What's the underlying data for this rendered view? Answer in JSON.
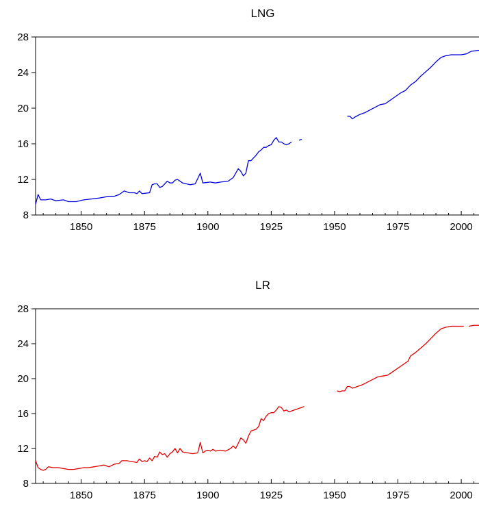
{
  "chart_data": [
    {
      "type": "line",
      "title": "LNG",
      "xlabel": "",
      "ylabel": "",
      "xlim": [
        1832,
        2007
      ],
      "ylim": [
        8,
        28
      ],
      "xticks": [
        "1850",
        "1875",
        "1900",
        "1925",
        "1950",
        "1975",
        "2000"
      ],
      "yticks": [
        "8",
        "12",
        "16",
        "20",
        "24",
        "28"
      ],
      "grid": false,
      "color": "#0000dd",
      "series": [
        {
          "segments": [
            [
              [
                1832,
                9.2
              ],
              [
                1833,
                10.3
              ],
              [
                1834,
                9.7
              ],
              [
                1836,
                9.7
              ],
              [
                1838,
                9.8
              ],
              [
                1840,
                9.6
              ],
              [
                1843,
                9.7
              ],
              [
                1845,
                9.5
              ],
              [
                1848,
                9.5
              ],
              [
                1851,
                9.7
              ],
              [
                1854,
                9.8
              ],
              [
                1857,
                9.9
              ],
              [
                1859,
                10.0
              ],
              [
                1861,
                10.1
              ],
              [
                1863,
                10.1
              ],
              [
                1865,
                10.3
              ],
              [
                1867,
                10.7
              ],
              [
                1869,
                10.5
              ],
              [
                1871,
                10.5
              ],
              [
                1872,
                10.4
              ],
              [
                1873,
                10.7
              ],
              [
                1874,
                10.4
              ],
              [
                1877,
                10.5
              ],
              [
                1878,
                11.4
              ],
              [
                1879,
                11.5
              ],
              [
                1880,
                11.5
              ],
              [
                1881,
                11.1
              ],
              [
                1882,
                11.2
              ],
              [
                1883,
                11.5
              ],
              [
                1884,
                11.8
              ],
              [
                1885,
                11.6
              ],
              [
                1886,
                11.6
              ],
              [
                1887,
                11.9
              ],
              [
                1888,
                12.0
              ],
              [
                1890,
                11.6
              ],
              [
                1893,
                11.4
              ],
              [
                1895,
                11.5
              ],
              [
                1897,
                12.7
              ],
              [
                1898,
                11.6
              ],
              [
                1901,
                11.7
              ],
              [
                1903,
                11.6
              ],
              [
                1905,
                11.7
              ],
              [
                1908,
                11.8
              ],
              [
                1910,
                12.2
              ],
              [
                1911,
                12.7
              ],
              [
                1912,
                13.2
              ],
              [
                1913,
                12.9
              ],
              [
                1914,
                12.4
              ],
              [
                1915,
                12.7
              ],
              [
                1916,
                14.1
              ],
              [
                1917,
                14.1
              ],
              [
                1918,
                14.4
              ],
              [
                1919,
                14.7
              ],
              [
                1920,
                15.1
              ],
              [
                1921,
                15.3
              ],
              [
                1922,
                15.6
              ],
              [
                1923,
                15.6
              ],
              [
                1924,
                15.8
              ],
              [
                1925,
                15.9
              ],
              [
                1926,
                16.4
              ],
              [
                1927,
                16.7
              ],
              [
                1928,
                16.2
              ],
              [
                1929,
                16.2
              ],
              [
                1930,
                16.0
              ],
              [
                1931,
                15.9
              ],
              [
                1932,
                16.0
              ],
              [
                1933,
                16.2
              ]
            ],
            [
              [
                1936,
                16.4
              ],
              [
                1937,
                16.5
              ]
            ],
            [
              [
                1955,
                19.1
              ],
              [
                1956,
                19.1
              ],
              [
                1957,
                18.8
              ],
              [
                1958,
                19.0
              ],
              [
                1960,
                19.3
              ],
              [
                1962,
                19.5
              ],
              [
                1964,
                19.8
              ],
              [
                1966,
                20.1
              ],
              [
                1968,
                20.4
              ],
              [
                1970,
                20.5
              ],
              [
                1972,
                20.9
              ],
              [
                1974,
                21.3
              ],
              [
                1976,
                21.7
              ],
              [
                1978,
                22.0
              ],
              [
                1980,
                22.6
              ],
              [
                1982,
                23.0
              ],
              [
                1984,
                23.6
              ],
              [
                1986,
                24.1
              ],
              [
                1988,
                24.6
              ],
              [
                1990,
                25.2
              ],
              [
                1992,
                25.7
              ],
              [
                1994,
                25.9
              ],
              [
                1996,
                26.0
              ],
              [
                1998,
                26.0
              ],
              [
                2000,
                26.0
              ],
              [
                2002,
                26.1
              ],
              [
                2004,
                26.4
              ],
              [
                2007,
                26.5
              ]
            ]
          ]
        }
      ]
    },
    {
      "type": "line",
      "title": "LR",
      "xlabel": "",
      "ylabel": "",
      "xlim": [
        1832,
        2007
      ],
      "ylim": [
        8,
        28
      ],
      "xticks": [
        "1850",
        "1875",
        "1900",
        "1925",
        "1950",
        "1975",
        "2000"
      ],
      "yticks": [
        "8",
        "12",
        "16",
        "20",
        "24",
        "28"
      ],
      "grid": false,
      "color": "#e00000",
      "series": [
        {
          "segments": [
            [
              [
                1832,
                10.6
              ],
              [
                1833,
                9.8
              ],
              [
                1834,
                9.6
              ],
              [
                1835,
                9.5
              ],
              [
                1836,
                9.6
              ],
              [
                1837,
                9.9
              ],
              [
                1839,
                9.8
              ],
              [
                1841,
                9.8
              ],
              [
                1843,
                9.7
              ],
              [
                1845,
                9.6
              ],
              [
                1847,
                9.6
              ],
              [
                1849,
                9.7
              ],
              [
                1851,
                9.8
              ],
              [
                1853,
                9.8
              ],
              [
                1855,
                9.9
              ],
              [
                1857,
                10.0
              ],
              [
                1859,
                10.1
              ],
              [
                1861,
                9.9
              ],
              [
                1863,
                10.2
              ],
              [
                1865,
                10.3
              ],
              [
                1866,
                10.6
              ],
              [
                1868,
                10.6
              ],
              [
                1870,
                10.5
              ],
              [
                1872,
                10.4
              ],
              [
                1873,
                10.8
              ],
              [
                1874,
                10.5
              ],
              [
                1875,
                10.6
              ],
              [
                1876,
                10.5
              ],
              [
                1877,
                10.9
              ],
              [
                1878,
                10.6
              ],
              [
                1879,
                11.1
              ],
              [
                1880,
                11.0
              ],
              [
                1881,
                11.6
              ],
              [
                1882,
                11.3
              ],
              [
                1883,
                11.4
              ],
              [
                1884,
                11.0
              ],
              [
                1885,
                11.4
              ],
              [
                1886,
                11.6
              ],
              [
                1887,
                12.0
              ],
              [
                1888,
                11.5
              ],
              [
                1889,
                12.0
              ],
              [
                1890,
                11.6
              ],
              [
                1892,
                11.5
              ],
              [
                1894,
                11.4
              ],
              [
                1896,
                11.5
              ],
              [
                1897,
                12.7
              ],
              [
                1898,
                11.5
              ],
              [
                1899,
                11.7
              ],
              [
                1900,
                11.8
              ],
              [
                1901,
                11.7
              ],
              [
                1902,
                11.9
              ],
              [
                1903,
                11.7
              ],
              [
                1905,
                11.8
              ],
              [
                1907,
                11.7
              ],
              [
                1909,
                12.0
              ],
              [
                1910,
                12.3
              ],
              [
                1911,
                12.0
              ],
              [
                1912,
                12.6
              ],
              [
                1913,
                13.2
              ],
              [
                1914,
                13.0
              ],
              [
                1915,
                12.6
              ],
              [
                1916,
                13.4
              ],
              [
                1917,
                14.0
              ],
              [
                1918,
                14.1
              ],
              [
                1919,
                14.2
              ],
              [
                1920,
                14.5
              ],
              [
                1921,
                15.4
              ],
              [
                1922,
                15.2
              ],
              [
                1923,
                15.7
              ],
              [
                1924,
                16.0
              ],
              [
                1925,
                16.1
              ],
              [
                1926,
                16.1
              ],
              [
                1927,
                16.4
              ],
              [
                1928,
                16.8
              ],
              [
                1929,
                16.7
              ],
              [
                1930,
                16.3
              ],
              [
                1931,
                16.4
              ],
              [
                1932,
                16.2
              ],
              [
                1933,
                16.3
              ],
              [
                1935,
                16.5
              ],
              [
                1937,
                16.7
              ],
              [
                1938,
                16.8
              ]
            ],
            [
              [
                1951,
                18.6
              ],
              [
                1952,
                18.5
              ],
              [
                1953,
                18.6
              ],
              [
                1954,
                18.6
              ],
              [
                1955,
                19.1
              ],
              [
                1956,
                19.1
              ],
              [
                1957,
                18.9
              ],
              [
                1959,
                19.1
              ],
              [
                1961,
                19.3
              ],
              [
                1963,
                19.6
              ],
              [
                1965,
                19.9
              ],
              [
                1967,
                20.2
              ],
              [
                1969,
                20.3
              ],
              [
                1971,
                20.4
              ],
              [
                1973,
                20.8
              ],
              [
                1975,
                21.2
              ],
              [
                1977,
                21.6
              ],
              [
                1979,
                22.0
              ],
              [
                1980,
                22.6
              ],
              [
                1982,
                23.0
              ],
              [
                1984,
                23.5
              ],
              [
                1986,
                24.0
              ],
              [
                1988,
                24.6
              ],
              [
                1990,
                25.2
              ],
              [
                1992,
                25.7
              ],
              [
                1994,
                25.9
              ],
              [
                1996,
                26.0
              ],
              [
                1998,
                26.0
              ],
              [
                2000,
                26.0
              ],
              [
                2001,
                26.0
              ]
            ],
            [
              [
                2003,
                26.0
              ],
              [
                2005,
                26.1
              ],
              [
                2007,
                26.1
              ]
            ]
          ]
        }
      ]
    }
  ]
}
